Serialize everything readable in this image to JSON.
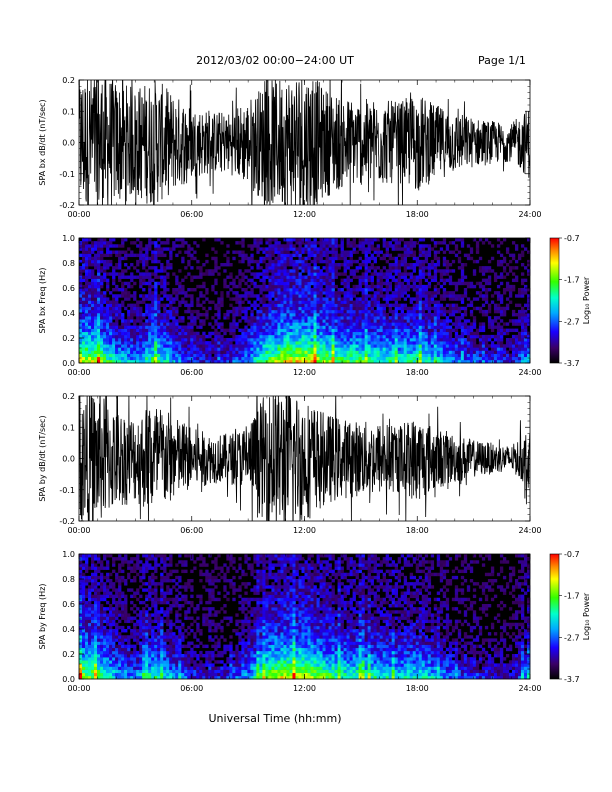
{
  "header": {
    "date_range": "2012/03/02  00:00−24:00 UT",
    "page": "Page 1/1"
  },
  "xlabel": "Universal Time (hh:mm)",
  "chart_data": [
    {
      "type": "line",
      "ylabel": "SPA bx dB/dt (nT/sec)",
      "xlim": [
        0,
        24
      ],
      "ylim": [
        -0.2,
        0.2
      ],
      "xticks": [
        "00:00",
        "06:00",
        "12:00",
        "18:00",
        "24:00"
      ],
      "yticks": [
        "-0.2",
        "-0.1",
        "0.0",
        "0.1",
        "0.2"
      ],
      "envelope_hours": [
        0,
        1,
        2,
        3,
        4,
        5,
        6,
        7,
        8,
        9,
        10,
        11,
        12,
        13,
        14,
        15,
        16,
        17,
        18,
        19,
        20,
        21,
        22,
        23,
        24
      ],
      "envelope_amplitude": [
        0.22,
        0.25,
        0.2,
        0.18,
        0.21,
        0.16,
        0.12,
        0.1,
        0.1,
        0.14,
        0.2,
        0.22,
        0.25,
        0.18,
        0.15,
        0.14,
        0.14,
        0.13,
        0.16,
        0.12,
        0.1,
        0.08,
        0.07,
        0.06,
        0.12
      ]
    },
    {
      "type": "heatmap",
      "ylabel": "SPA bx Freq (Hz)",
      "xlim": [
        0,
        24
      ],
      "ylim": [
        0,
        1.0
      ],
      "xticks": [
        "00:00",
        "06:00",
        "12:00",
        "18:00",
        "24:00"
      ],
      "yticks": [
        "0.0",
        "0.2",
        "0.4",
        "0.6",
        "0.8",
        "1.0"
      ],
      "colorbar": {
        "label": "Log₁₀ Power",
        "range": [
          -3.7,
          -0.7
        ],
        "ticks": [
          "-0.7",
          "-1.7",
          "-2.7",
          "-3.7"
        ]
      },
      "activity_hours": [
        0,
        1,
        2,
        3,
        4,
        5,
        6,
        7,
        8,
        9,
        10,
        11,
        12,
        13,
        14,
        15,
        16,
        17,
        18,
        19,
        20,
        21,
        22,
        23,
        24
      ],
      "activity_level": [
        0.9,
        0.8,
        0.55,
        0.45,
        0.7,
        0.5,
        0.3,
        0.25,
        0.3,
        0.45,
        0.75,
        0.9,
        0.95,
        0.8,
        0.7,
        0.7,
        0.65,
        0.6,
        0.65,
        0.55,
        0.4,
        0.35,
        0.3,
        0.25,
        0.5
      ]
    },
    {
      "type": "line",
      "ylabel": "SPA by dB/dt (nT/sec)",
      "xlim": [
        0,
        24
      ],
      "ylim": [
        -0.2,
        0.2
      ],
      "xticks": [
        "00:00",
        "06:00",
        "12:00",
        "18:00",
        "24:00"
      ],
      "yticks": [
        "-0.2",
        "-0.1",
        "0.0",
        "0.1",
        "0.2"
      ],
      "envelope_hours": [
        0,
        1,
        2,
        3,
        4,
        5,
        6,
        7,
        8,
        9,
        10,
        11,
        12,
        13,
        14,
        15,
        16,
        17,
        18,
        19,
        20,
        21,
        22,
        23,
        24
      ],
      "envelope_amplitude": [
        0.2,
        0.22,
        0.16,
        0.14,
        0.19,
        0.14,
        0.1,
        0.08,
        0.08,
        0.11,
        0.22,
        0.24,
        0.2,
        0.15,
        0.13,
        0.12,
        0.12,
        0.11,
        0.14,
        0.1,
        0.08,
        0.06,
        0.05,
        0.04,
        0.1
      ]
    },
    {
      "type": "heatmap",
      "ylabel": "SPA by Freq (Hz)",
      "xlim": [
        0,
        24
      ],
      "ylim": [
        0,
        1.0
      ],
      "xticks": [
        "00:00",
        "06:00",
        "12:00",
        "18:00",
        "24:00"
      ],
      "yticks": [
        "0.0",
        "0.2",
        "0.4",
        "0.6",
        "0.8",
        "1.0"
      ],
      "colorbar": {
        "label": "Log₁₀ Power",
        "range": [
          -3.7,
          -0.7
        ],
        "ticks": [
          "-0.7",
          "-1.7",
          "-2.7",
          "-3.7"
        ]
      },
      "activity_hours": [
        0,
        1,
        2,
        3,
        4,
        5,
        6,
        7,
        8,
        9,
        10,
        11,
        12,
        13,
        14,
        15,
        16,
        17,
        18,
        19,
        20,
        21,
        22,
        23,
        24
      ],
      "activity_level": [
        0.85,
        0.75,
        0.5,
        0.4,
        0.65,
        0.45,
        0.3,
        0.25,
        0.3,
        0.45,
        0.8,
        0.9,
        0.9,
        0.75,
        0.65,
        0.65,
        0.6,
        0.55,
        0.6,
        0.5,
        0.35,
        0.3,
        0.25,
        0.2,
        0.5
      ]
    }
  ]
}
